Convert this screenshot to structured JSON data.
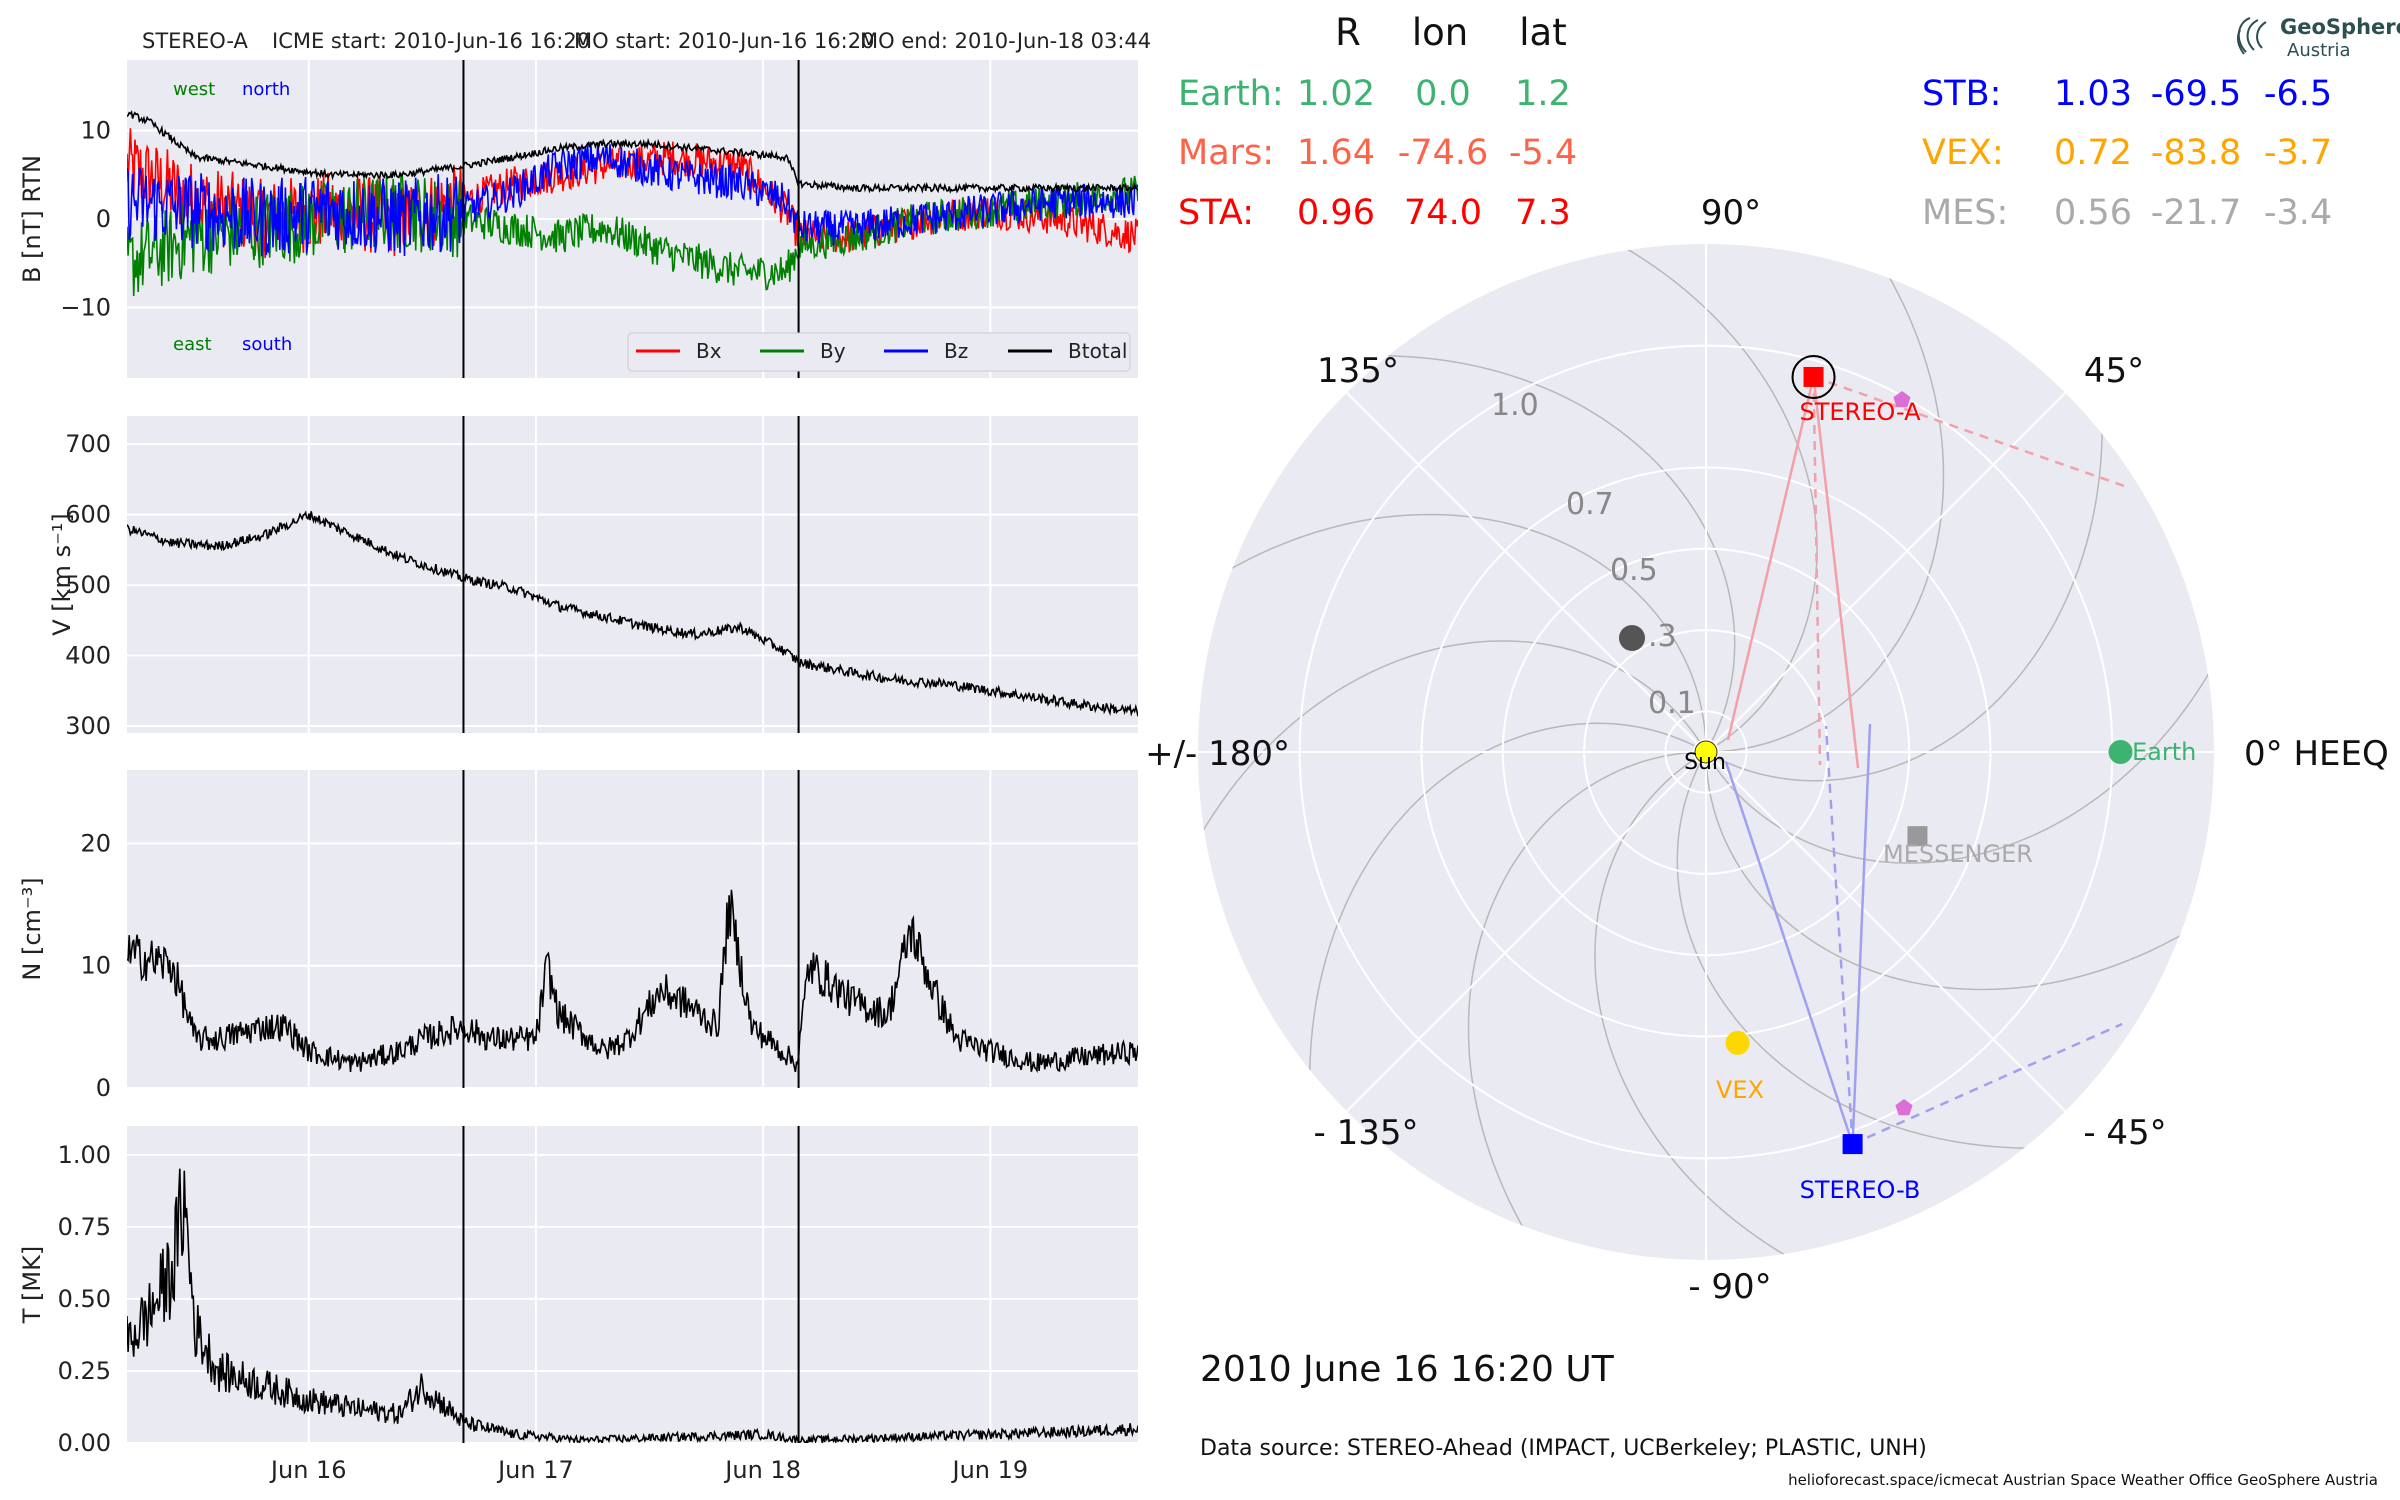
{
  "header": {
    "spacecraft": "STEREO-A",
    "icme_start": "ICME start: 2010-Jun-16 16:20",
    "mo_start": "MO start: 2010-Jun-16 16:20",
    "mo_end": "MO end: 2010-Jun-18 03:44"
  },
  "logo": {
    "name": "GeoSphere",
    "sub": "Austria"
  },
  "positions_table": {
    "columns": [
      "R",
      "lon",
      "lat"
    ],
    "rows": [
      {
        "name": "Earth:",
        "R": "1.02",
        "lon": "0.0",
        "lat": "1.2",
        "color": "#3cb371"
      },
      {
        "name": "Mars:",
        "R": "1.64",
        "lon": "-74.6",
        "lat": "-5.4",
        "color": "#ff6347"
      },
      {
        "name": "STA:",
        "R": "0.96",
        "lon": "74.0",
        "lat": "7.3",
        "color": "#ff0000"
      },
      {
        "name": "STB:",
        "R": "1.03",
        "lon": "-69.5",
        "lat": "-6.5",
        "color": "#0000ff"
      },
      {
        "name": "VEX:",
        "R": "0.72",
        "lon": "-83.8",
        "lat": "-3.7",
        "color": "#ffa500"
      },
      {
        "name": "MES:",
        "R": "0.56",
        "lon": "-21.7",
        "lat": "-3.4",
        "color": "#aaaaaa"
      }
    ]
  },
  "time_label": "2010 June 16  16:20 UT",
  "data_source": "Data source: STEREO-Ahead (IMPACT, UCBerkeley; PLASTIC, UNH)",
  "footer": "helioforecast.space/icmecat   Austrian Space Weather Office   GeoSphere Austria",
  "chart_data": [
    {
      "type": "line",
      "panel": "magnetic field",
      "ylabel": "B [nT] RTN",
      "ylim": [
        -18,
        18
      ],
      "yticks": [
        -10,
        0,
        10
      ],
      "ytick_labels": [
        "−10",
        "0",
        "10"
      ],
      "direction_labels": {
        "top_left": "west",
        "top_right": "north",
        "bottom_left": "east",
        "bottom_right": "south"
      },
      "legend_position": "lower-right",
      "x_days": [
        15.2,
        19.65
      ],
      "boundaries": [
        16.681,
        18.156
      ],
      "series": [
        {
          "name": "Bx",
          "color": "#ff0000",
          "x": [
            15.2,
            15.5,
            15.8,
            16.1,
            16.4,
            16.68,
            16.9,
            17.1,
            17.3,
            17.6,
            17.9,
            18.1,
            18.16,
            18.4,
            18.7,
            19.0,
            19.3,
            19.65
          ],
          "y": [
            6,
            2,
            0,
            1,
            0,
            2,
            4,
            5,
            6,
            7,
            6,
            1,
            -2,
            -2,
            0,
            1,
            0,
            -2
          ]
        },
        {
          "name": "By",
          "color": "#008000",
          "x": [
            15.2,
            15.5,
            15.8,
            16.1,
            16.4,
            16.68,
            16.9,
            17.1,
            17.3,
            17.6,
            17.9,
            18.1,
            18.16,
            18.4,
            18.7,
            19.0,
            19.3,
            19.65
          ],
          "y": [
            -5,
            -2,
            -1,
            0,
            1,
            0,
            -1,
            -2,
            -1,
            -4,
            -6,
            -6,
            -3,
            -2,
            0,
            1,
            2,
            3
          ]
        },
        {
          "name": "Bz",
          "color": "#0000ff",
          "x": [
            15.2,
            15.5,
            15.8,
            16.1,
            16.4,
            16.68,
            16.9,
            17.1,
            17.3,
            17.6,
            17.9,
            18.1,
            18.16,
            18.4,
            18.7,
            19.0,
            19.3,
            19.65
          ],
          "y": [
            2,
            1,
            0,
            1,
            0,
            1,
            3,
            6,
            7,
            5,
            4,
            2,
            -1,
            -1,
            0,
            1,
            2,
            2
          ]
        },
        {
          "name": "Btotal",
          "color": "#000000",
          "x": [
            15.2,
            15.3,
            15.5,
            15.8,
            16.1,
            16.4,
            16.68,
            16.9,
            17.1,
            17.3,
            17.5,
            17.7,
            17.9,
            18.1,
            18.16,
            18.4,
            18.7,
            19.0,
            19.3,
            19.65
          ],
          "y": [
            12,
            11,
            7,
            6,
            5,
            5,
            6,
            7,
            8,
            8.5,
            8.5,
            8,
            7.5,
            7,
            4,
            3.5,
            3.5,
            3.5,
            3.5,
            3.5
          ]
        }
      ]
    },
    {
      "type": "line",
      "panel": "speed",
      "ylabel": "V [km s⁻¹]",
      "ylim": [
        290,
        740
      ],
      "yticks": [
        300,
        400,
        500,
        600,
        700
      ],
      "ytick_labels": [
        "300",
        "400",
        "500",
        "600",
        "700"
      ],
      "series": [
        {
          "name": "",
          "color": "#000000",
          "x": [
            15.2,
            15.4,
            15.6,
            15.8,
            16.0,
            16.2,
            16.4,
            16.68,
            16.9,
            17.1,
            17.3,
            17.5,
            17.7,
            17.9,
            18.1,
            18.16,
            18.4,
            18.6,
            18.8,
            19.0,
            19.2,
            19.4,
            19.65
          ],
          "y": [
            580,
            560,
            555,
            570,
            600,
            570,
            540,
            510,
            495,
            470,
            455,
            440,
            430,
            440,
            405,
            390,
            375,
            365,
            360,
            350,
            340,
            330,
            320
          ]
        }
      ]
    },
    {
      "type": "line",
      "panel": "density",
      "ylabel": "N [cm⁻³]",
      "ylim": [
        0,
        26
      ],
      "yticks": [
        0,
        10,
        20
      ],
      "ytick_labels": [
        "0",
        "10",
        "20"
      ],
      "series": [
        {
          "name": "",
          "color": "#000000",
          "x": [
            15.2,
            15.4,
            15.5,
            15.6,
            15.8,
            15.9,
            16.0,
            16.2,
            16.4,
            16.5,
            16.68,
            16.8,
            17.0,
            17.05,
            17.1,
            17.3,
            17.4,
            17.55,
            17.65,
            17.8,
            17.85,
            17.95,
            18.15,
            18.2,
            18.4,
            18.55,
            18.65,
            18.75,
            18.85,
            19.0,
            19.2,
            19.4,
            19.65
          ],
          "y": [
            11,
            10,
            4,
            4,
            5,
            5,
            3,
            2,
            3,
            4,
            5,
            4,
            4,
            10,
            6,
            3,
            4,
            8,
            7,
            5,
            15,
            5,
            2,
            10,
            7,
            6,
            13,
            8,
            4,
            3,
            2,
            2.5,
            3
          ]
        }
      ]
    },
    {
      "type": "line",
      "panel": "temperature",
      "ylabel": "T [MK]",
      "ylim": [
        0,
        1.1
      ],
      "yticks": [
        0,
        0.25,
        0.5,
        0.75,
        1.0
      ],
      "ytick_labels": [
        "0.00",
        "0.25",
        "0.50",
        "0.75",
        "1.00"
      ],
      "xtick_days": [
        16,
        17,
        18,
        19
      ],
      "xtick_labels": [
        "Jun 16",
        "Jun 17",
        "Jun 18",
        "Jun 19"
      ],
      "series": [
        {
          "name": "",
          "color": "#000000",
          "x": [
            15.2,
            15.3,
            15.4,
            15.45,
            15.5,
            15.6,
            15.8,
            16.0,
            16.2,
            16.4,
            16.5,
            16.68,
            16.9,
            17.2,
            17.6,
            18.0,
            18.16,
            18.6,
            19.0,
            19.4,
            19.65
          ],
          "y": [
            0.35,
            0.45,
            0.6,
            0.85,
            0.4,
            0.25,
            0.2,
            0.15,
            0.12,
            0.1,
            0.2,
            0.07,
            0.03,
            0.01,
            0.02,
            0.03,
            0.01,
            0.02,
            0.03,
            0.04,
            0.05
          ]
        }
      ]
    },
    {
      "type": "scatter",
      "panel": "heliospheric position plot (polar)",
      "angle_labels": [
        "90°",
        "45°",
        "0° HEEQ",
        "- 45°",
        "- 90°",
        "- 135°",
        "+/- 180°",
        "135°"
      ],
      "radius_labels": [
        "0.1",
        ".3",
        "0.5",
        "0.7",
        "1.0"
      ],
      "grid": true,
      "points": [
        {
          "name": "STEREO-A",
          "r": 0.96,
          "lon": 74.0,
          "marker": "square",
          "color": "#ff0000",
          "label_color": "#ff0000"
        },
        {
          "name": "STEREO-B",
          "r": 1.03,
          "lon": -69.5,
          "marker": "square",
          "color": "#0000ff",
          "label_color": "#0000ff"
        },
        {
          "name": "Earth",
          "r": 1.02,
          "lon": 0.0,
          "marker": "circle",
          "color": "#3cb371",
          "label_color": "#3cb371"
        },
        {
          "name": "VEX",
          "r": 0.72,
          "lon": -83.8,
          "marker": "circle",
          "color": "#ffd700",
          "label_color": "#ffa500"
        },
        {
          "name": "MESSENGER",
          "r": 0.56,
          "lon": -21.7,
          "marker": "square",
          "color": "#999999",
          "label_color": "#aaaaaa"
        },
        {
          "name": "Sun",
          "r": 0.0,
          "lon": 0.0,
          "marker": "circle",
          "color": "#ffff00",
          "label_color": "#000000"
        }
      ]
    }
  ]
}
